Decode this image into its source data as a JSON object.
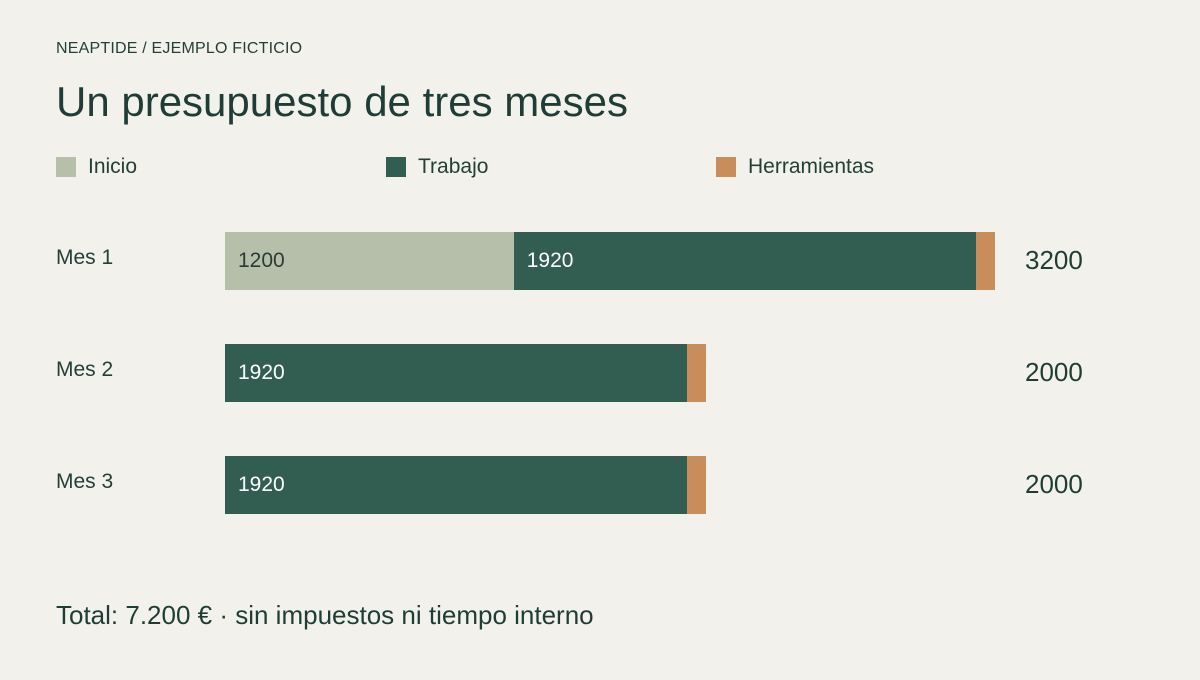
{
  "eyebrow": "NEAPTIDE / EJEMPLO FICTICIO",
  "title": "Un presupuesto de tres meses",
  "legend": [
    {
      "label": "Inicio",
      "color": "#b5bfa9"
    },
    {
      "label": "Trabajo",
      "color": "#325d51"
    },
    {
      "label": "Herramientas",
      "color": "#c98d5c"
    }
  ],
  "chart_data": {
    "type": "bar",
    "orientation": "horizontal",
    "stacked": true,
    "categories": [
      "Mes 1",
      "Mes 2",
      "Mes 3"
    ],
    "series": [
      {
        "name": "Inicio",
        "values": [
          1200,
          0,
          0
        ],
        "color": "#b5bfa9",
        "text_color": "#2b3b36"
      },
      {
        "name": "Trabajo",
        "values": [
          1920,
          1920,
          1920
        ],
        "color": "#325d51",
        "text_color": "#ffffff"
      },
      {
        "name": "Herramientas",
        "values": [
          80,
          80,
          80
        ],
        "color": "#c98d5c",
        "text_color": "#ffffff"
      }
    ],
    "segment_labels": [
      [
        "1200",
        "1920",
        ""
      ],
      [
        "",
        "1920",
        ""
      ],
      [
        "",
        "1920",
        ""
      ]
    ],
    "totals": [
      "3200",
      "2000",
      "2000"
    ],
    "xlim": [
      0,
      3200
    ],
    "grid": false,
    "legend_position": "top"
  },
  "footer": "Total: 7.200 € · sin impuestos ni tiempo interno"
}
